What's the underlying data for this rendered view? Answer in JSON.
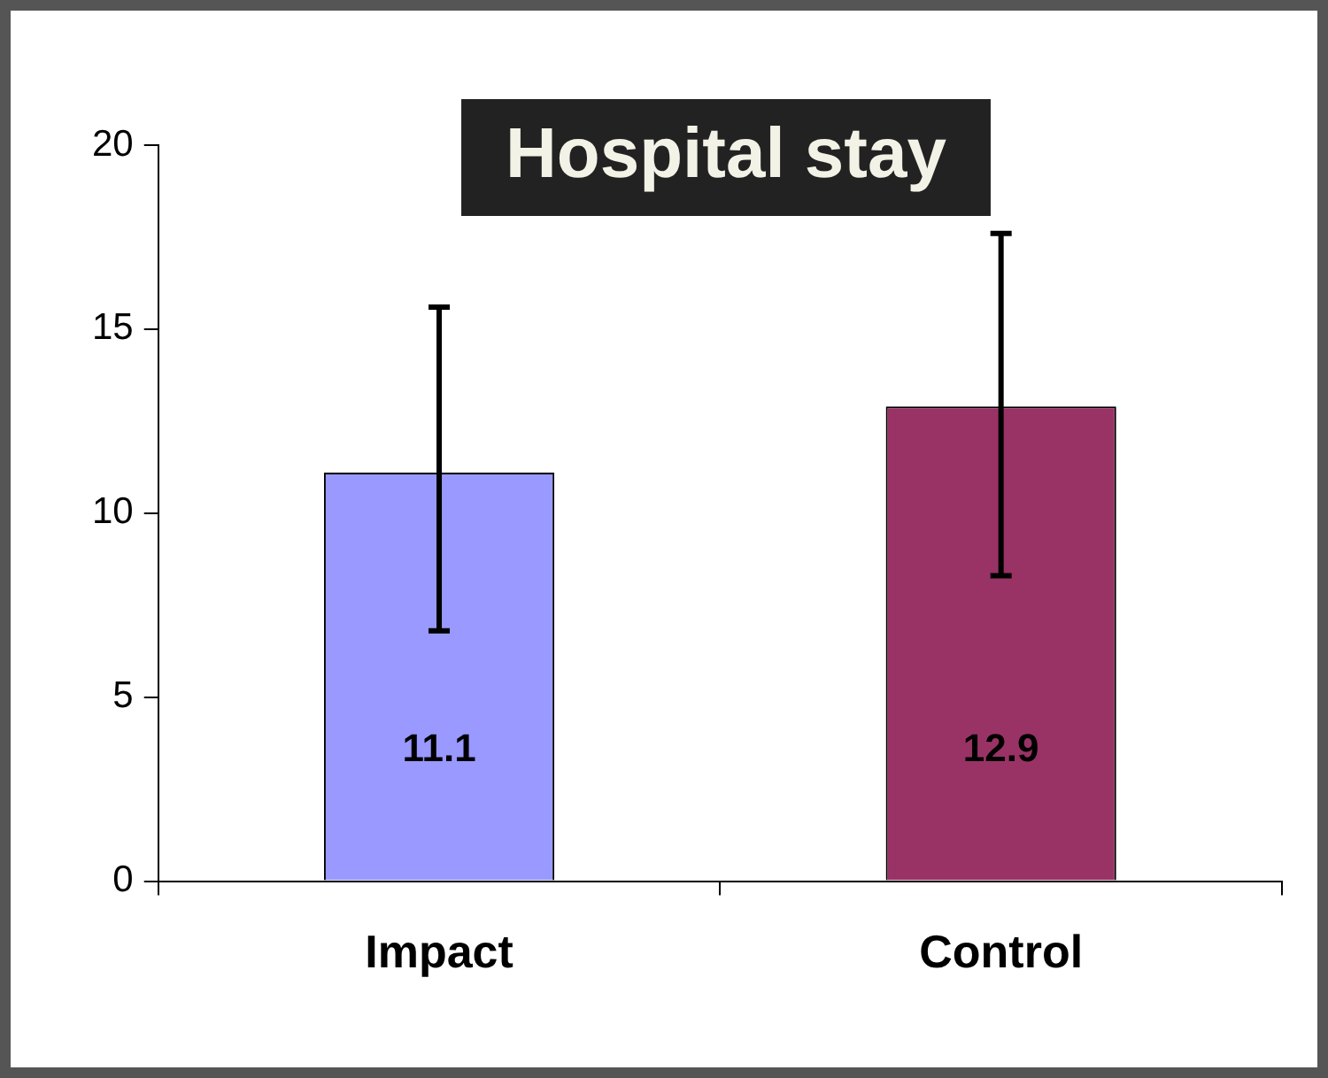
{
  "chart_data": {
    "type": "bar",
    "title": "Hospital stay",
    "categories": [
      "Impact",
      "Control"
    ],
    "values": [
      11.1,
      12.9
    ],
    "colors": [
      "#9999ff",
      "#993366"
    ],
    "errors": [
      [
        6.8,
        15.6
      ],
      [
        8.3,
        17.6
      ]
    ],
    "ylim": [
      0,
      20
    ],
    "yticks": [
      0,
      5,
      10,
      15,
      20
    ],
    "grid": false,
    "legend": false,
    "data_labels": true
  }
}
